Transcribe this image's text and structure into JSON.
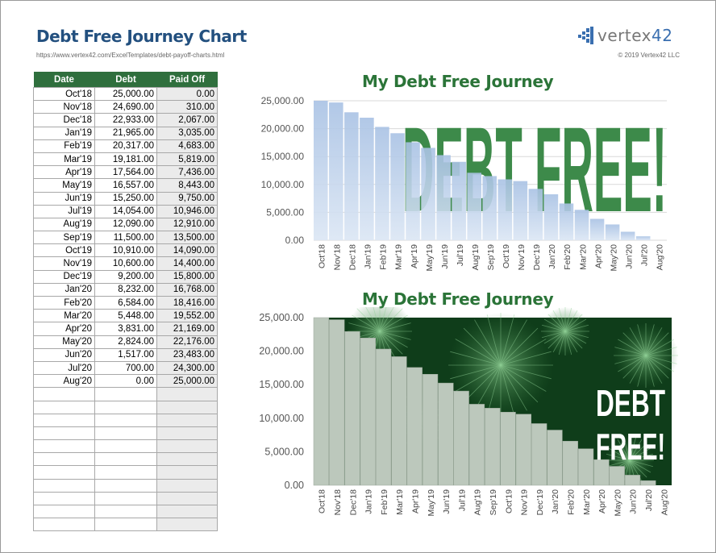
{
  "header": {
    "title": "Debt Free Journey Chart",
    "url": "https://www.vertex42.com/ExcelTemplates/debt-payoff-charts.html",
    "logo_text": "vertex42",
    "copyright": "© 2019 Vertex42 LLC"
  },
  "table": {
    "columns": [
      "Date",
      "Debt",
      "Paid Off"
    ],
    "rows": [
      [
        "Oct'18",
        "25,000.00",
        "0.00"
      ],
      [
        "Nov'18",
        "24,690.00",
        "310.00"
      ],
      [
        "Dec'18",
        "22,933.00",
        "2,067.00"
      ],
      [
        "Jan'19",
        "21,965.00",
        "3,035.00"
      ],
      [
        "Feb'19",
        "20,317.00",
        "4,683.00"
      ],
      [
        "Mar'19",
        "19,181.00",
        "5,819.00"
      ],
      [
        "Apr'19",
        "17,564.00",
        "7,436.00"
      ],
      [
        "May'19",
        "16,557.00",
        "8,443.00"
      ],
      [
        "Jun'19",
        "15,250.00",
        "9,750.00"
      ],
      [
        "Jul'19",
        "14,054.00",
        "10,946.00"
      ],
      [
        "Aug'19",
        "12,090.00",
        "12,910.00"
      ],
      [
        "Sep'19",
        "11,500.00",
        "13,500.00"
      ],
      [
        "Oct'19",
        "10,910.00",
        "14,090.00"
      ],
      [
        "Nov'19",
        "10,600.00",
        "14,400.00"
      ],
      [
        "Dec'19",
        "9,200.00",
        "15,800.00"
      ],
      [
        "Jan'20",
        "8,232.00",
        "16,768.00"
      ],
      [
        "Feb'20",
        "6,584.00",
        "18,416.00"
      ],
      [
        "Mar'20",
        "5,448.00",
        "19,552.00"
      ],
      [
        "Apr'20",
        "3,831.00",
        "21,169.00"
      ],
      [
        "May'20",
        "2,824.00",
        "22,176.00"
      ],
      [
        "Jun'20",
        "1,517.00",
        "23,483.00"
      ],
      [
        "Jul'20",
        "700.00",
        "24,300.00"
      ],
      [
        "Aug'20",
        "0.00",
        "25,000.00"
      ]
    ],
    "empty_rows": 11
  },
  "chart_data": [
    {
      "type": "bar",
      "title": "My Debt Free Journey",
      "background_text": "DEBT FREE!",
      "categories": [
        "Oct'18",
        "Nov'18",
        "Dec'18",
        "Jan'19",
        "Feb'19",
        "Mar'19",
        "Apr'19",
        "May'19",
        "Jun'19",
        "Jul'19",
        "Aug'19",
        "Sep'19",
        "Oct'19",
        "Nov'19",
        "Dec'19",
        "Jan'20",
        "Feb'20",
        "Mar'20",
        "Apr'20",
        "May'20",
        "Jun'20",
        "Jul'20",
        "Aug'20"
      ],
      "values": [
        25000,
        24690,
        22933,
        21965,
        20317,
        19181,
        17564,
        16557,
        15250,
        14054,
        12090,
        11500,
        10910,
        10600,
        9200,
        8232,
        6584,
        5448,
        3831,
        2824,
        1517,
        700,
        0
      ],
      "yticks": [
        "0.00",
        "5,000.00",
        "10,000.00",
        "15,000.00",
        "20,000.00",
        "25,000.00"
      ],
      "ylim": [
        0,
        25000
      ],
      "bar_color": "#b7cde8",
      "text_color": "#3d8a4a"
    },
    {
      "type": "bar",
      "title": "My Debt Free Journey",
      "background_text": "DEBT FREE!",
      "categories": [
        "Oct'18",
        "Nov'18",
        "Dec'18",
        "Jan'19",
        "Feb'19",
        "Mar'19",
        "Apr'19",
        "May'19",
        "Jun'19",
        "Jul'19",
        "Aug'19",
        "Sep'19",
        "Oct'19",
        "Nov'19",
        "Dec'19",
        "Jan'20",
        "Feb'20",
        "Mar'20",
        "Apr'20",
        "May'20",
        "Jun'20",
        "Jul'20",
        "Aug'20"
      ],
      "values": [
        25000,
        24690,
        22933,
        21965,
        20317,
        19181,
        17564,
        16557,
        15250,
        14054,
        12090,
        11500,
        10910,
        10600,
        9200,
        8232,
        6584,
        5448,
        3831,
        2824,
        1517,
        700,
        0
      ],
      "yticks": [
        "0.00",
        "5,000.00",
        "10,000.00",
        "15,000.00",
        "20,000.00",
        "25,000.00"
      ],
      "ylim": [
        0,
        25000
      ],
      "bar_color": "#bcc8bc",
      "background_color": "#0f3d1a"
    }
  ]
}
